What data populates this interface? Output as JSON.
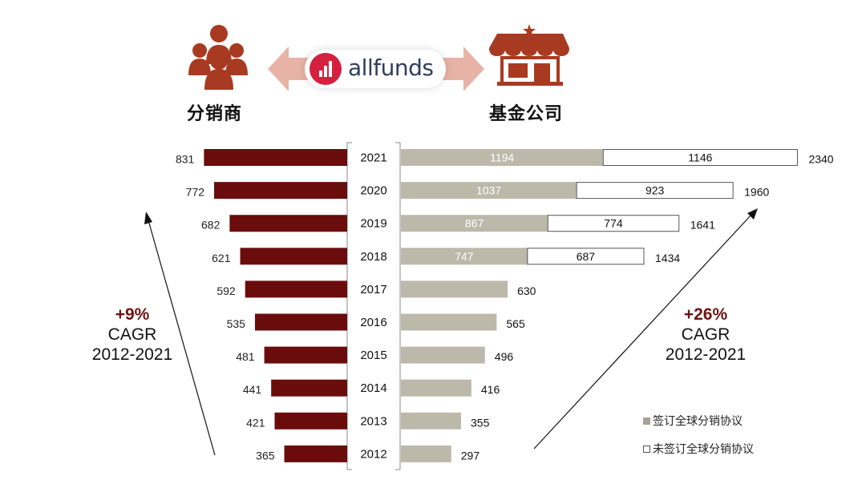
{
  "header": {
    "distributor_label": "分销商",
    "fund_company_label": "基金公司",
    "logo_text": "allfunds",
    "icons": [
      "people-group-icon",
      "storefront-icon",
      "double-arrow-icon",
      "allfunds-logo-icon"
    ]
  },
  "annotations": {
    "left": {
      "pct": "+9%",
      "line1": "CAGR",
      "line2": "2012-2021"
    },
    "right": {
      "pct": "+26%",
      "line1": "CAGR",
      "line2": "2012-2021"
    }
  },
  "legend": {
    "signed": "签订全球分销协议",
    "unsigned": "未签订全球分销协议"
  },
  "colors": {
    "distributor_bar": "#6b0c0c",
    "signed_bar": "#bdb9aa",
    "unsigned_bar": "#ffffff",
    "icon": "#a93a22",
    "arrow_fill": "#e8b3a7",
    "accent_text": "#6e1212"
  },
  "chart_data": [
    {
      "type": "bar",
      "orientation": "horizontal",
      "direction": "right-to-left",
      "categories": [
        "2021",
        "2020",
        "2019",
        "2018",
        "2017",
        "2016",
        "2015",
        "2014",
        "2013",
        "2012"
      ],
      "series": [
        {
          "name": "分销商",
          "values": [
            831,
            772,
            682,
            621,
            592,
            535,
            481,
            441,
            421,
            365
          ]
        }
      ]
    },
    {
      "type": "bar",
      "orientation": "horizontal",
      "stacked": true,
      "categories": [
        "2021",
        "2020",
        "2019",
        "2018",
        "2017",
        "2016",
        "2015",
        "2014",
        "2013",
        "2012"
      ],
      "series": [
        {
          "name": "签订全球分销协议",
          "values": [
            1194,
            1037,
            867,
            747,
            630,
            565,
            496,
            416,
            355,
            297
          ]
        },
        {
          "name": "未签订全球分销协议",
          "values": [
            1146,
            923,
            774,
            687,
            null,
            null,
            null,
            null,
            null,
            null
          ]
        }
      ],
      "totals": [
        2340,
        1960,
        1641,
        1434,
        null,
        null,
        null,
        null,
        null,
        null
      ]
    }
  ]
}
